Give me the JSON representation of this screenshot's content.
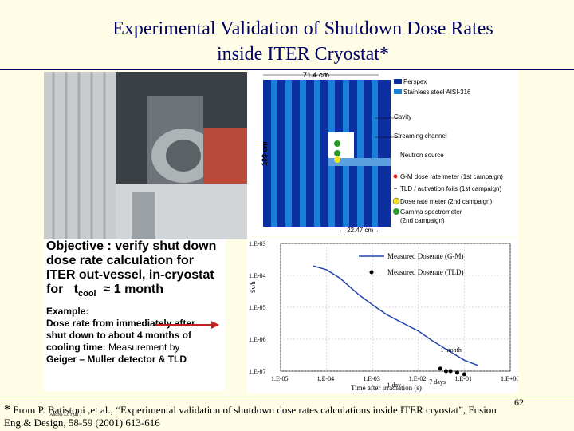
{
  "title_line1": "Experimental Validation of Shutdown Dose Rates",
  "title_line2": "inside ITER Cryostat*",
  "objective": {
    "line1": "Objective : verify shut down",
    "line2": "dose rate calculation for",
    "line3": "ITER out-vessel, in-cryostat",
    "line4_prefix": "for",
    "line4_t": "t",
    "line4_sub": "cool",
    "line4_suffix": "≈ 1 month",
    "example_label": "Example:",
    "ex1": "Dose rate from immediately after",
    "ex2": "shut down to about 4 months of",
    "ex3_a": "cooling time: ",
    "ex3_b": "Measurement  by",
    "ex4": "Geiger – Muller detector & TLD"
  },
  "diagram": {
    "width_label": "71.4 cm",
    "height_label": "100 cm",
    "bottom_label": "← 22.47 cm→",
    "legend": [
      "Perspex",
      "Stainless steel AISI-316",
      "Cavity",
      "Streaming channel",
      "Neutron source",
      "G-M dose rate meter (1st campaign)",
      "TLD / activation foils (1st campaign)",
      "Dose rate meter (2nd campaign)",
      "Gamma spectrometer",
      "(2nd campaign)"
    ],
    "colors": {
      "perspex": "#0b2fa0",
      "steel": "#1a7fd6",
      "gm": "#e02020",
      "dose2": "#f0e020",
      "gamma": "#2a9a2a"
    }
  },
  "chart_data": {
    "type": "line",
    "xlabel": "Time after irradiation (s)",
    "ylabel": "Sv/h",
    "xscale": "log",
    "yscale": "log",
    "x_ticks": [
      "1.E-05",
      "1.E-04",
      "1.E-03",
      "1.E-02",
      "1.E-01",
      "1.E+00"
    ],
    "y_ticks": [
      "1.E-03",
      "1.E-04",
      "1.E-05",
      "1.E-06",
      "1.E-07"
    ],
    "annotations": [
      "1 month",
      "1 day",
      "7 days"
    ],
    "series": [
      {
        "name": "Measured Doserate (G-M)",
        "x": [
          5e-05,
          0.0001,
          0.0002,
          0.0005,
          0.001,
          0.002,
          0.005,
          0.01,
          0.02,
          0.05,
          0.1,
          0.2
        ],
        "y": [
          0.0002,
          0.00015,
          8e-05,
          2.5e-05,
          1.2e-05,
          6e-06,
          3e-06,
          1.8e-06,
          9e-07,
          4e-07,
          2.2e-07,
          1.5e-07
        ]
      },
      {
        "name": "Measured Doserate (TLD)",
        "x": [
          0.03,
          0.04,
          0.05,
          0.07,
          0.1
        ],
        "y": [
          1.2e-07,
          1e-07,
          1e-07,
          9e-08,
          8e-08
        ]
      }
    ]
  },
  "page_number": "62",
  "footnote": {
    "star": "*",
    "text": " From P. Batistoni ,et al., “Experimental validation of shutdown dose rates calculations inside ITER cryostat”, Fusion",
    "line2": "Eng.& Design, 58-59 (2001) 613-616",
    "small": "Ahdrei Lo rjun 7"
  }
}
